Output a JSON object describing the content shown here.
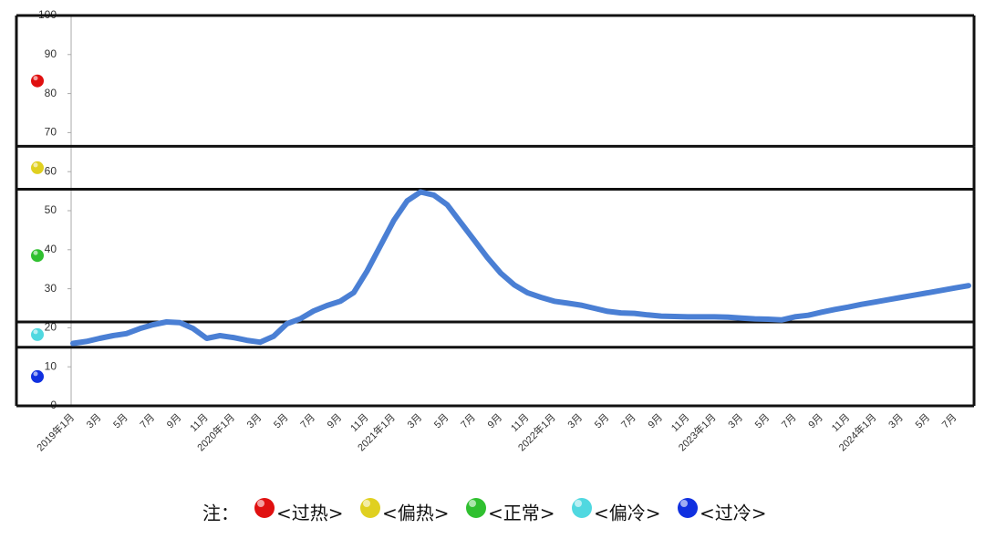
{
  "chart_data": {
    "type": "line",
    "categories": [
      "2019年1月",
      null,
      "3月",
      null,
      "5月",
      null,
      "7月",
      null,
      "9月",
      null,
      "11月",
      null,
      "2020年1月",
      null,
      "3月",
      null,
      "5月",
      null,
      "7月",
      null,
      "9月",
      null,
      "11月",
      null,
      "2021年1月",
      null,
      "3月",
      null,
      "5月",
      null,
      "7月",
      null,
      "9月",
      null,
      "11月",
      null,
      "2022年1月",
      null,
      "3月",
      null,
      "5月",
      null,
      "7月",
      null,
      "9月",
      null,
      "11月",
      null,
      "2023年1月",
      null,
      "3月",
      null,
      "5月",
      null,
      "7月",
      null,
      "9月",
      null,
      "11月",
      null,
      "2024年1月",
      null,
      "3月",
      null,
      "5月",
      null,
      "7月",
      null
    ],
    "series": [
      {
        "color": "#4a7fd4",
        "values": [
          16,
          16.5,
          17.3,
          18,
          18.5,
          19.8,
          20.8,
          21.5,
          21.3,
          19.8,
          17.3,
          18,
          17.5,
          16.8,
          16.3,
          17.8,
          21,
          22.3,
          24.3,
          25.7,
          26.8,
          29,
          34.5,
          41,
          47.5,
          52.5,
          54.8,
          54,
          51.5,
          47,
          42.5,
          38,
          34,
          31,
          29,
          27.8,
          26.8,
          26.3,
          25.8,
          25,
          24.2,
          23.8,
          23.7,
          23.3,
          23,
          22.9,
          22.8,
          22.8,
          22.8,
          22.7,
          22.5,
          22.3,
          22.2,
          22,
          22.8,
          23.2,
          24,
          24.7,
          25.3,
          26,
          26.6,
          27.2,
          27.8,
          28.4,
          29,
          29.6,
          30.2,
          30.8
        ]
      }
    ],
    "ylim": [
      0,
      100
    ],
    "yticks": [
      0,
      10,
      20,
      30,
      40,
      50,
      60,
      70,
      80,
      90,
      100
    ],
    "legend_prefix": "注：",
    "zones": [
      {
        "label": "<过热>",
        "color": "#e01010",
        "range": [
          66.5,
          100
        ]
      },
      {
        "label": "<偏热>",
        "color": "#e0d020",
        "range": [
          55.5,
          66.5
        ]
      },
      {
        "label": "<正常>",
        "color": "#30c030",
        "range": [
          21.5,
          55.5
        ]
      },
      {
        "label": "<偏冷>",
        "color": "#50d8e0",
        "range": [
          15,
          21.5
        ]
      },
      {
        "label": "<过冷>",
        "color": "#1030e0",
        "range": [
          0,
          15
        ]
      }
    ]
  }
}
